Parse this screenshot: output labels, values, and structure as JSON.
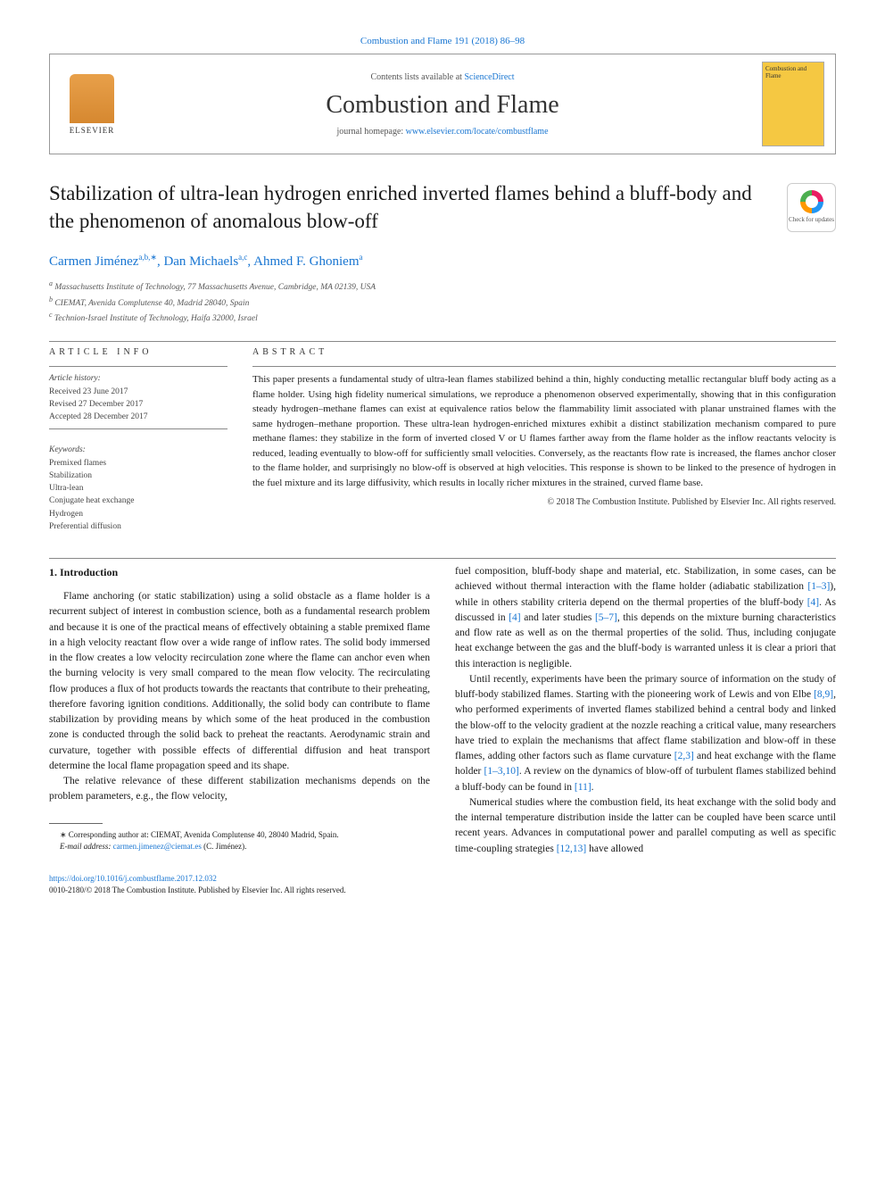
{
  "top_banner": "Combustion and Flame 191 (2018) 86–98",
  "header": {
    "contents_prefix": "Contents lists available at ",
    "contents_link": "ScienceDirect",
    "journal": "Combustion and Flame",
    "homepage_prefix": "journal homepage: ",
    "homepage_link": "www.elsevier.com/locate/combustflame",
    "publisher": "ELSEVIER",
    "cover_label": "Combustion and Flame"
  },
  "check_updates": "Check for updates",
  "title": "Stabilization of ultra-lean hydrogen enriched inverted flames behind a bluff-body and the phenomenon of anomalous blow-off",
  "authors": [
    {
      "name": "Carmen Jiménez",
      "marks": "a,b,∗"
    },
    {
      "name": "Dan Michaels",
      "marks": "a,c"
    },
    {
      "name": "Ahmed F. Ghoniem",
      "marks": "a"
    }
  ],
  "affiliations": [
    "Massachusetts Institute of Technology, 77 Massachusetts Avenue, Cambridge, MA 02139, USA",
    "CIEMAT, Avenida Complutense 40, Madrid 28040, Spain",
    "Technion-Israel Institute of Technology, Haifa 32000, Israel"
  ],
  "info": {
    "label": "article info",
    "history_head": "Article history:",
    "history": [
      "Received 23 June 2017",
      "Revised 27 December 2017",
      "Accepted 28 December 2017"
    ],
    "keywords_head": "Keywords:",
    "keywords": [
      "Premixed flames",
      "Stabilization",
      "Ultra-lean",
      "Conjugate heat exchange",
      "Hydrogen",
      "Preferential diffusion"
    ]
  },
  "abstract": {
    "label": "abstract",
    "text": "This paper presents a fundamental study of ultra-lean flames stabilized behind a thin, highly conducting metallic rectangular bluff body acting as a flame holder. Using high fidelity numerical simulations, we reproduce a phenomenon observed experimentally, showing that in this configuration steady hydrogen–methane flames can exist at equivalence ratios below the flammability limit associated with planar unstrained flames with the same hydrogen–methane proportion. These ultra-lean hydrogen-enriched mixtures exhibit a distinct stabilization mechanism compared to pure methane flames: they stabilize in the form of inverted closed V or U flames farther away from the flame holder as the inflow reactants velocity is reduced, leading eventually to blow-off for sufficiently small velocities. Conversely, as the reactants flow rate is increased, the flames anchor closer to the flame holder, and surprisingly no blow-off is observed at high velocities. This response is shown to be linked to the presence of hydrogen in the fuel mixture and its large diffusivity, which results in locally richer mixtures in the strained, curved flame base.",
    "copyright": "© 2018 The Combustion Institute. Published by Elsevier Inc. All rights reserved."
  },
  "body": {
    "intro_head": "1. Introduction",
    "col1_p1": "Flame anchoring (or static stabilization) using a solid obstacle as a flame holder is a recurrent subject of interest in combustion science, both as a fundamental research problem and because it is one of the practical means of effectively obtaining a stable premixed flame in a high velocity reactant flow over a wide range of inflow rates. The solid body immersed in the flow creates a low velocity recirculation zone where the flame can anchor even when the burning velocity is very small compared to the mean flow velocity. The recirculating flow produces a flux of hot products towards the reactants that contribute to their preheating, therefore favoring ignition conditions. Additionally, the solid body can contribute to flame stabilization by providing means by which some of the heat produced in the combustion zone is conducted through the solid back to preheat the reactants. Aerodynamic strain and curvature, together with possible effects of differential diffusion and heat transport determine the local flame propagation speed and its shape.",
    "col1_p2": "The relative relevance of these different stabilization mechanisms depends on the problem parameters, e.g., the flow velocity,",
    "col2_p1a": "fuel composition, bluff-body shape and material, etc. Stabilization, in some cases, can be achieved without thermal interaction with the flame holder (adiabatic stabilization ",
    "col2_p1_ref1": "[1–3]",
    "col2_p1b": "), while in others stability criteria depend on the thermal properties of the bluff-body ",
    "col2_p1_ref2": "[4]",
    "col2_p1c": ". As discussed in ",
    "col2_p1_ref3": "[4]",
    "col2_p1d": " and later studies ",
    "col2_p1_ref4": "[5–7]",
    "col2_p1e": ", this depends on the mixture burning characteristics and flow rate as well as on the thermal properties of the solid. Thus, including conjugate heat exchange between the gas and the bluff-body is warranted unless it is clear a priori that this interaction is negligible.",
    "col2_p2a": "Until recently, experiments have been the primary source of information on the study of bluff-body stabilized flames. Starting with the pioneering work of Lewis and von Elbe ",
    "col2_p2_ref1": "[8,9]",
    "col2_p2b": ", who performed experiments of inverted flames stabilized behind a central body and linked the blow-off to the velocity gradient at the nozzle reaching a critical value, many researchers have tried to explain the mechanisms that affect flame stabilization and blow-off in these flames, adding other factors such as flame curvature ",
    "col2_p2_ref2": "[2,3]",
    "col2_p2c": " and heat exchange with the flame holder ",
    "col2_p2_ref3": "[1–3,10]",
    "col2_p2d": ". A review on the dynamics of blow-off of turbulent flames stabilized behind a bluff-body can be found in ",
    "col2_p2_ref4": "[11]",
    "col2_p2e": ".",
    "col2_p3a": "Numerical studies where the combustion field, its heat exchange with the solid body and the internal temperature distribution inside the latter can be coupled have been scarce until recent years. Advances in computational power and parallel computing as well as specific time-coupling strategies ",
    "col2_p3_ref1": "[12,13]",
    "col2_p3b": " have allowed"
  },
  "footnote": {
    "corr_label": "∗ Corresponding author at: CIEMAT, Avenida Complutense 40, 28040 Madrid, Spain.",
    "email_label": "E-mail address: ",
    "email": "carmen.jimenez@ciemat.es",
    "email_who": " (C. Jiménez)."
  },
  "bottom": {
    "doi": "https://doi.org/10.1016/j.combustflame.2017.12.032",
    "issn_line": "0010-2180/© 2018 The Combustion Institute. Published by Elsevier Inc. All rights reserved."
  },
  "colors": {
    "link": "#1976d2",
    "text": "#1a1a1a",
    "muted": "#555",
    "rule": "#888",
    "cover_bg": "#f5c842",
    "elsevier_bg": "#d68830"
  }
}
